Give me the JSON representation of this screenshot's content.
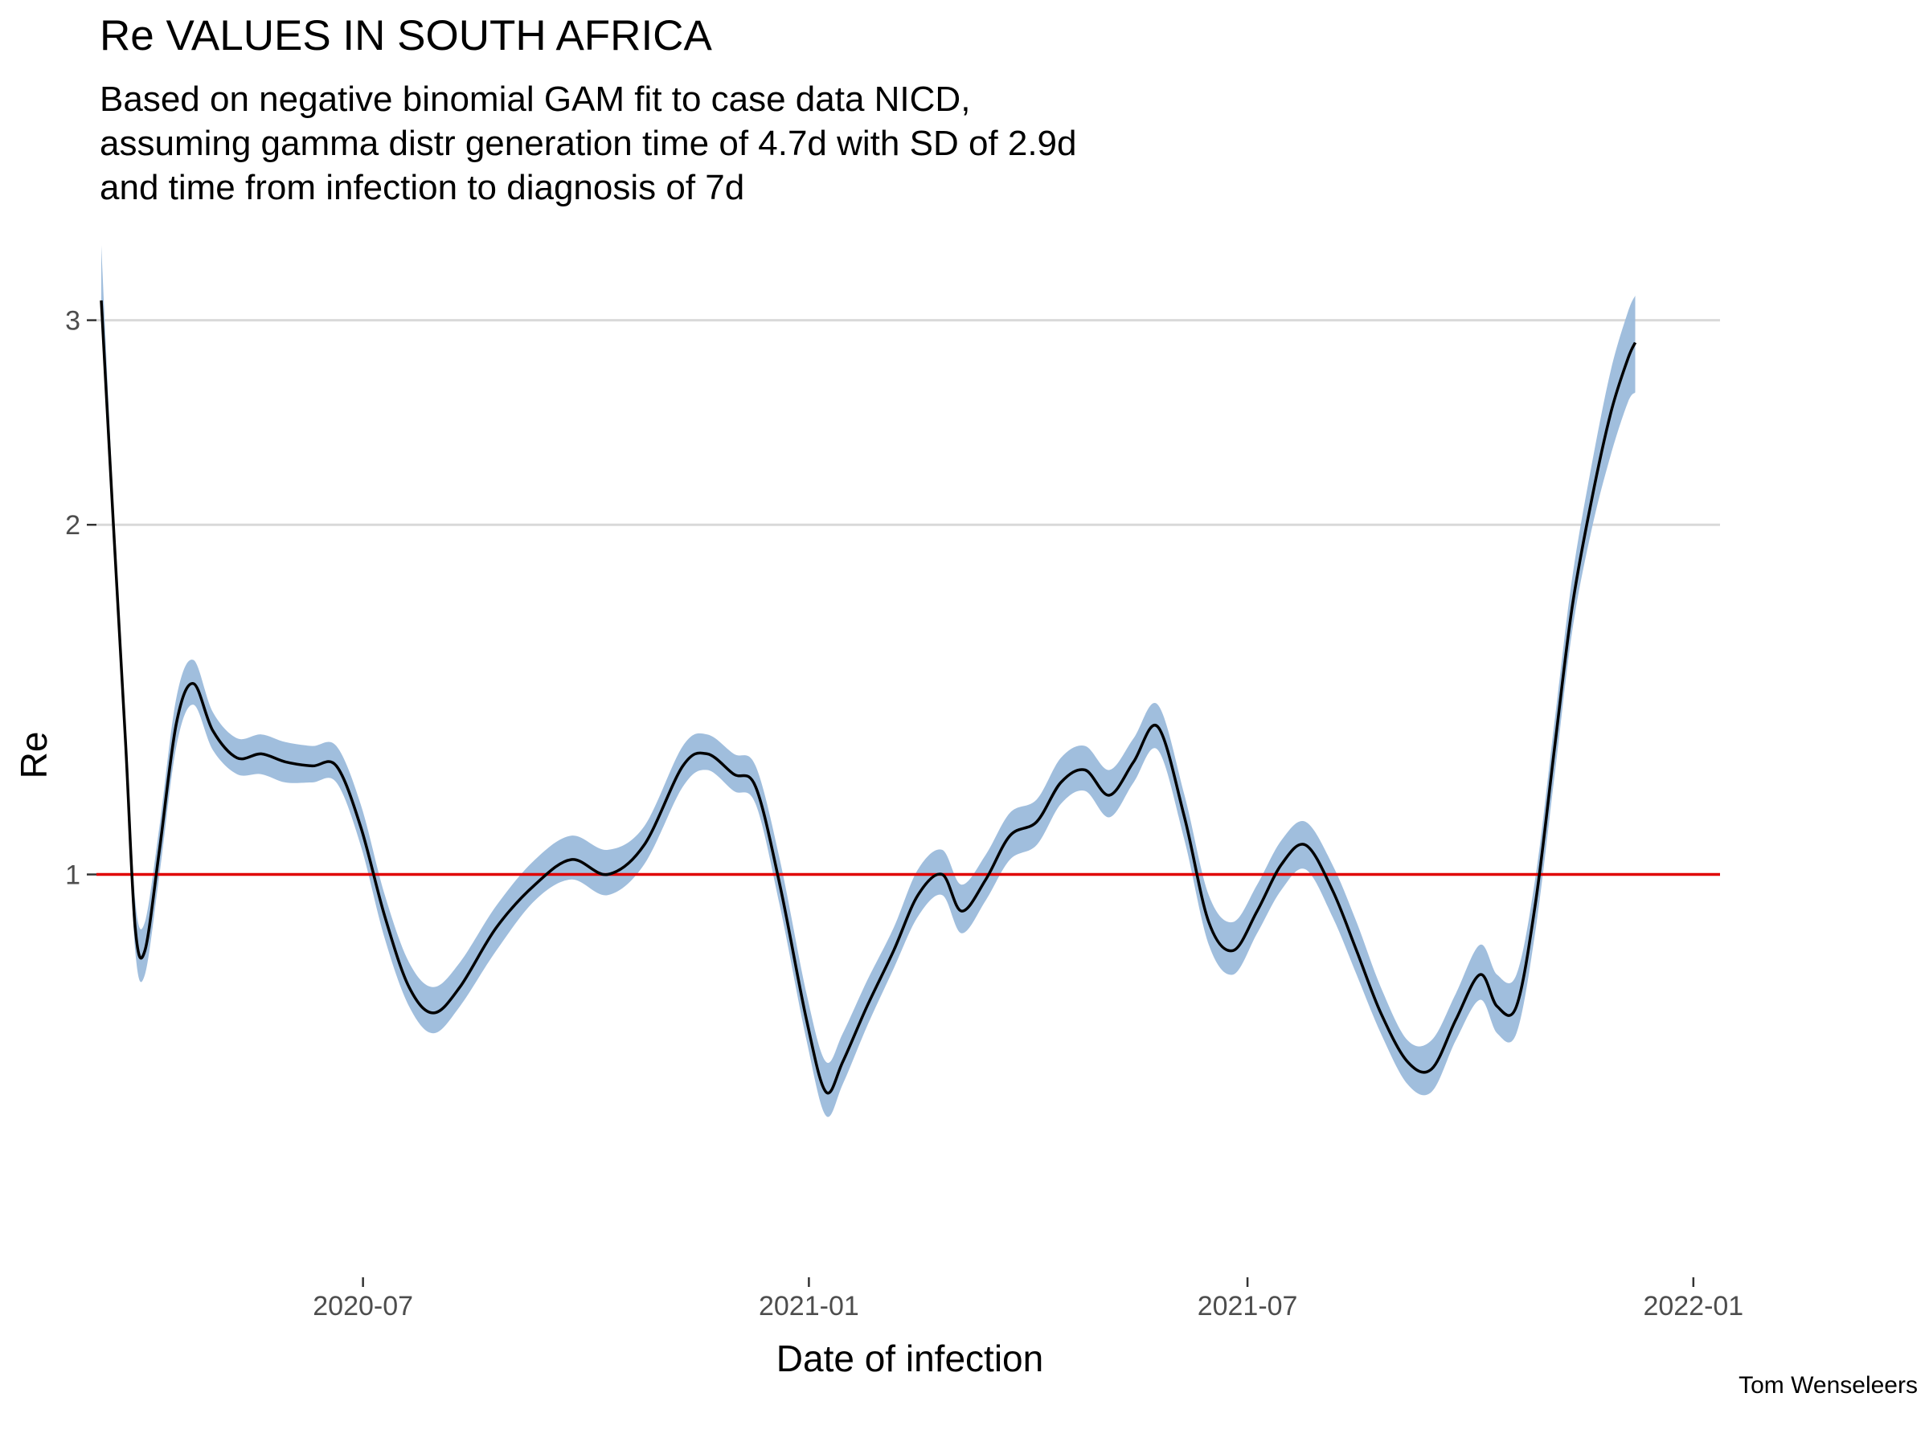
{
  "title": "Re VALUES IN SOUTH AFRICA",
  "subtitle": "Based on negative binomial GAM fit to case data NICD,\nassuming gamma distr generation time of 4.7d with SD of 2.9d\nand time from infection to diagnosis of 7d",
  "caption": "Tom Wenseleers",
  "colors": {
    "line": "#000000",
    "ribbon": "#9bbbdb",
    "reference": "#e00000",
    "grid": "#d9d9d9"
  },
  "chart_data": {
    "type": "line",
    "title": "Re VALUES IN SOUTH AFRICA",
    "xlabel": "Date of infection",
    "ylabel": "Re",
    "xlim": [
      "2020-03-13",
      "2022-01-12"
    ],
    "ylim": [
      0.45,
      3.4
    ],
    "y_scale": "log",
    "y_ticks": [
      1,
      2,
      3
    ],
    "y_tick_labels": [
      "1",
      "2",
      "3"
    ],
    "x_ticks": [
      "2020-07-01",
      "2021-01-01",
      "2021-07-01",
      "2022-01-01"
    ],
    "x_tick_labels": [
      "2020-07",
      "2021-01",
      "2021-07",
      "2022-01"
    ],
    "reference_line": 1,
    "grid": "major y only",
    "series": [
      {
        "x": [
          "2020-03-15",
          "2020-03-20",
          "2020-03-25",
          "2020-03-29",
          "2020-04-02",
          "2020-04-08",
          "2020-04-15",
          "2020-04-22",
          "2020-04-30",
          "2020-05-10",
          "2020-05-20",
          "2020-05-30",
          "2020-06-10",
          "2020-06-20",
          "2020-06-30",
          "2020-07-10",
          "2020-07-20",
          "2020-07-30",
          "2020-08-10",
          "2020-08-25",
          "2020-09-10",
          "2020-09-25",
          "2020-10-10",
          "2020-10-25",
          "2020-11-10",
          "2020-11-20",
          "2020-12-01",
          "2020-12-10",
          "2020-12-20",
          "2020-12-31",
          "2021-01-08",
          "2021-01-15",
          "2021-01-25",
          "2021-02-05",
          "2021-02-15",
          "2021-02-25",
          "2021-03-05",
          "2021-03-15",
          "2021-03-25",
          "2021-04-05",
          "2021-04-15",
          "2021-04-25",
          "2021-05-05",
          "2021-05-15",
          "2021-05-25",
          "2021-06-05",
          "2021-06-15",
          "2021-06-25",
          "2021-07-05",
          "2021-07-15",
          "2021-07-25",
          "2021-08-05",
          "2021-08-15",
          "2021-08-25",
          "2021-09-05",
          "2021-09-15",
          "2021-09-25",
          "2021-10-05",
          "2021-10-12",
          "2021-10-20",
          "2021-10-28",
          "2021-11-05",
          "2021-11-12",
          "2021-11-20",
          "2021-11-28",
          "2021-12-05",
          "2021-12-08"
        ],
        "values": [
          3.12,
          2.0,
          1.3,
          0.9,
          0.86,
          1.05,
          1.35,
          1.46,
          1.33,
          1.26,
          1.27,
          1.25,
          1.24,
          1.24,
          1.1,
          0.92,
          0.8,
          0.76,
          0.8,
          0.9,
          0.98,
          1.03,
          1.0,
          1.06,
          1.24,
          1.27,
          1.22,
          1.19,
          0.98,
          0.75,
          0.65,
          0.69,
          0.77,
          0.86,
          0.96,
          1.0,
          0.93,
          0.99,
          1.08,
          1.11,
          1.2,
          1.23,
          1.17,
          1.25,
          1.34,
          1.12,
          0.91,
          0.86,
          0.93,
          1.02,
          1.06,
          0.97,
          0.86,
          0.76,
          0.69,
          0.68,
          0.75,
          0.82,
          0.77,
          0.77,
          0.95,
          1.3,
          1.7,
          2.1,
          2.5,
          2.78,
          2.87
        ],
        "lower": [
          3.08,
          1.95,
          1.26,
          0.86,
          0.82,
          1.0,
          1.29,
          1.4,
          1.28,
          1.22,
          1.22,
          1.2,
          1.2,
          1.2,
          1.06,
          0.88,
          0.77,
          0.73,
          0.77,
          0.86,
          0.95,
          0.99,
          0.96,
          1.02,
          1.19,
          1.23,
          1.18,
          1.15,
          0.94,
          0.72,
          0.62,
          0.66,
          0.74,
          0.83,
          0.92,
          0.96,
          0.89,
          0.95,
          1.03,
          1.06,
          1.15,
          1.18,
          1.12,
          1.2,
          1.28,
          1.07,
          0.87,
          0.82,
          0.89,
          0.97,
          1.01,
          0.92,
          0.82,
          0.73,
          0.66,
          0.65,
          0.72,
          0.78,
          0.73,
          0.73,
          0.9,
          1.23,
          1.62,
          1.98,
          2.3,
          2.55,
          2.6
        ],
        "upper": [
          3.48,
          2.08,
          1.35,
          0.95,
          0.91,
          1.1,
          1.42,
          1.53,
          1.38,
          1.31,
          1.32,
          1.3,
          1.29,
          1.29,
          1.15,
          0.96,
          0.84,
          0.8,
          0.84,
          0.94,
          1.03,
          1.08,
          1.05,
          1.1,
          1.29,
          1.32,
          1.27,
          1.24,
          1.03,
          0.79,
          0.69,
          0.73,
          0.81,
          0.9,
          1.01,
          1.05,
          0.98,
          1.04,
          1.13,
          1.16,
          1.26,
          1.29,
          1.23,
          1.31,
          1.4,
          1.17,
          0.96,
          0.91,
          0.98,
          1.07,
          1.11,
          1.02,
          0.91,
          0.8,
          0.72,
          0.72,
          0.79,
          0.87,
          0.82,
          0.82,
          1.0,
          1.37,
          1.8,
          2.25,
          2.72,
          3.05,
          3.15
        ]
      }
    ]
  }
}
